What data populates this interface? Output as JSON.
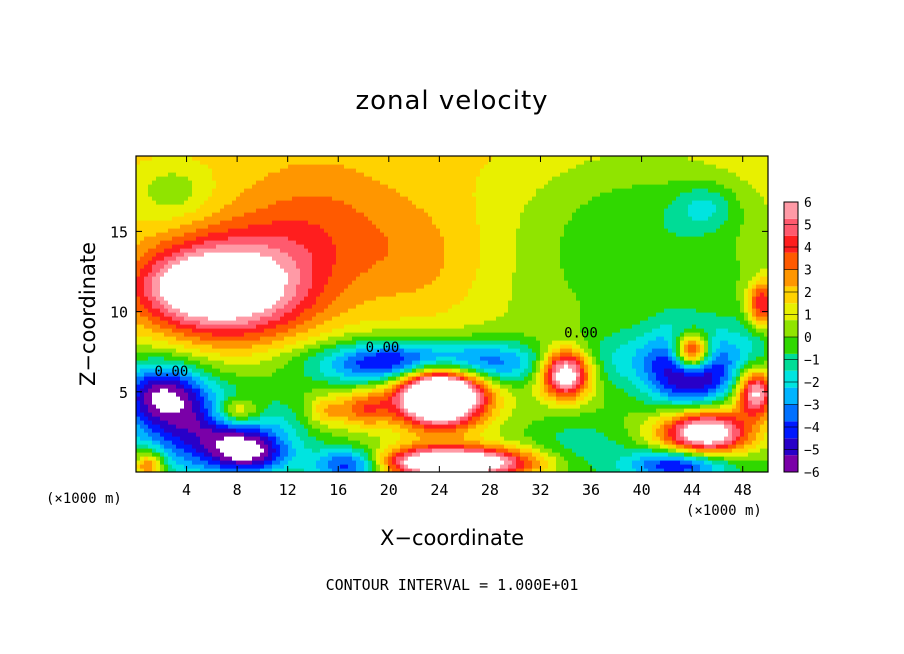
{
  "chart_data": {
    "type": "heatmap",
    "title": "zonal velocity",
    "xlabel": "X−coordinate",
    "ylabel": "Z−coordinate",
    "x_unit": "(×1000 m)",
    "xlim": [
      0,
      50
    ],
    "ylim": [
      0,
      19.7
    ],
    "x_ticks": [
      4,
      8,
      12,
      16,
      20,
      24,
      28,
      32,
      36,
      40,
      44,
      48
    ],
    "x_tick_labels": [
      "4",
      "8",
      "12",
      "16",
      "20",
      "24",
      "28",
      "32",
      "36",
      "40",
      "44",
      "48"
    ],
    "y_ticks": [
      5,
      10,
      15
    ],
    "y_tick_labels": [
      "5",
      "10",
      "15"
    ],
    "colorbar": {
      "min": -6,
      "max": 6,
      "ticks": [
        6,
        5,
        4,
        3,
        2,
        1,
        0,
        -1,
        -2,
        -3,
        -4,
        -5,
        -6
      ],
      "tick_labels": [
        "6",
        "5",
        "4",
        "3",
        "2",
        "1",
        "0",
        "−1",
        "−2",
        "−3",
        "−4",
        "−5",
        "−6"
      ],
      "colors": [
        "#7a00a8",
        "#2800c8",
        "#0018ff",
        "#0070ff",
        "#00b4ff",
        "#00e4e0",
        "#00dc96",
        "#30d800",
        "#90e400",
        "#e8f000",
        "#ffd200",
        "#ff9600",
        "#ff5a00",
        "#ff1e1e",
        "#ff5a6e",
        "#ff9aa6"
      ]
    },
    "contour_labels": [
      {
        "x": 2.8,
        "z": 6.3,
        "text": "0.00"
      },
      {
        "x": 19.5,
        "z": 7.8,
        "text": "0.00"
      },
      {
        "x": 35.2,
        "z": 8.7,
        "text": "0.00"
      }
    ],
    "grid": false,
    "note": "CONTOUR INTERVAL = 1.000E+01"
  },
  "field": {
    "background": 0.8,
    "blobs": [
      {
        "x": 8,
        "z": 11.5,
        "sx": 6.5,
        "sz": 3.3,
        "a": 6.2
      },
      {
        "x": 4,
        "z": 11.5,
        "sx": 4.5,
        "sz": 2.2,
        "a": 3.0
      },
      {
        "x": 14,
        "z": 15.5,
        "sx": 6.0,
        "sz": 3.5,
        "a": 1.6
      },
      {
        "x": 22,
        "z": 13,
        "sx": 6.0,
        "sz": 4.0,
        "a": 1.4
      },
      {
        "x": 3,
        "z": 17.5,
        "sx": 3.0,
        "sz": 1.8,
        "a": -1.4
      },
      {
        "x": 40,
        "z": 15,
        "sx": 10.0,
        "sz": 6.0,
        "a": -2.0
      },
      {
        "x": 45,
        "z": 16.5,
        "sx": 2.5,
        "sz": 1.5,
        "a": -1.8
      },
      {
        "x": 49,
        "z": 8,
        "sx": 2.0,
        "sz": 4.0,
        "a": -1.5
      },
      {
        "x": 49.5,
        "z": 10.5,
        "sx": 1.2,
        "sz": 1.5,
        "a": 5.0
      },
      {
        "x": 23,
        "z": 6.8,
        "sx": 8.0,
        "sz": 1.4,
        "a": -7.5
      },
      {
        "x": 24,
        "z": 5.0,
        "sx": 3.5,
        "sz": 2.0,
        "a": 12.5
      },
      {
        "x": 2,
        "z": 5.0,
        "sx": 3.5,
        "sz": 2.0,
        "a": -5.5
      },
      {
        "x": 6,
        "z": 2.5,
        "sx": 6.0,
        "sz": 2.5,
        "a": -5.0
      },
      {
        "x": 9,
        "z": 1.2,
        "sx": 3.0,
        "sz": 1.2,
        "a": -4.0
      },
      {
        "x": 8,
        "z": 3.8,
        "sx": 2.0,
        "sz": 0.9,
        "a": 4.0
      },
      {
        "x": 15,
        "z": 3.8,
        "sx": 1.5,
        "sz": 1.0,
        "a": 2.0
      },
      {
        "x": 18,
        "z": 4.0,
        "sx": 2.0,
        "sz": 1.2,
        "a": 3.0
      },
      {
        "x": 25,
        "z": 0.6,
        "sx": 6.5,
        "sz": 1.0,
        "a": 9.0
      },
      {
        "x": 17,
        "z": 0.5,
        "sx": 3.0,
        "sz": 1.0,
        "a": -5.5
      },
      {
        "x": 34,
        "z": 6.2,
        "sx": 2.0,
        "sz": 1.5,
        "a": 8.0
      },
      {
        "x": 38,
        "z": 7.0,
        "sx": 4.0,
        "sz": 2.0,
        "a": -1.5
      },
      {
        "x": 44,
        "z": 6.5,
        "sx": 3.5,
        "sz": 2.5,
        "a": -7.0
      },
      {
        "x": 44,
        "z": 7.5,
        "sx": 1.5,
        "sz": 1.2,
        "a": 9.0
      },
      {
        "x": 45,
        "z": 2.5,
        "sx": 3.5,
        "sz": 1.5,
        "a": 8.0
      },
      {
        "x": 43,
        "z": 0.5,
        "sx": 4.0,
        "sz": 1.0,
        "a": -5.0
      },
      {
        "x": 49,
        "z": 5.0,
        "sx": 1.5,
        "sz": 1.5,
        "a": 7.0
      },
      {
        "x": 35,
        "z": 1.5,
        "sx": 4.0,
        "sz": 2.0,
        "a": -1.5
      },
      {
        "x": 1,
        "z": 0.4,
        "sx": 1.2,
        "sz": 1.0,
        "a": 4.0
      }
    ]
  }
}
